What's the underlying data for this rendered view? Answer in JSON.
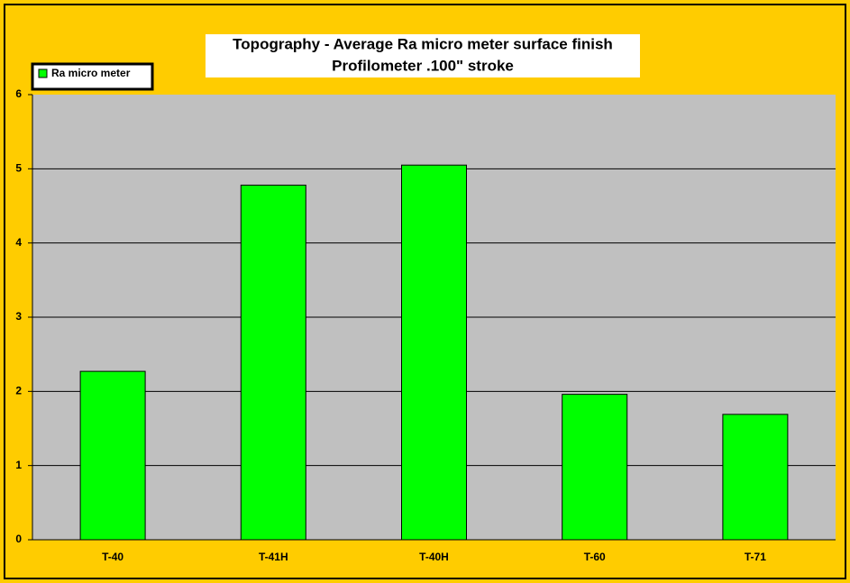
{
  "chart_data": {
    "type": "bar",
    "title": "Topography - Average Ra micro meter surface finish",
    "subtitle": "Profilometer .100\" stroke",
    "categories": [
      "T-40",
      "T-41H",
      "T-40H",
      "T-60",
      "T-71"
    ],
    "series": [
      {
        "name": "Ra micro meter",
        "color": "#00ff00",
        "values": [
          2.27,
          4.78,
          5.05,
          1.96,
          1.69
        ]
      }
    ],
    "ylim": [
      0,
      6
    ],
    "yticks": [
      0,
      1,
      2,
      3,
      4,
      5,
      6
    ],
    "grid": true,
    "legend": "top-left"
  }
}
